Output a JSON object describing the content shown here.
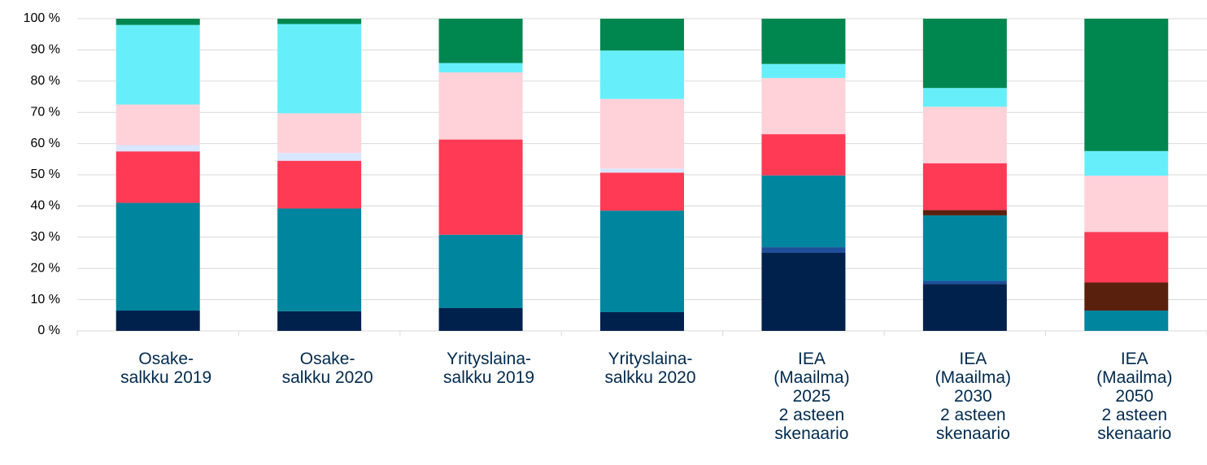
{
  "chart_data": {
    "type": "stacked_bar",
    "categories": [
      "Osake-\nsalkku 2019",
      "Osake-\nsalkku 2020",
      "Yrityslaina-\nsalkku 2019",
      "Yrityslaina-\nsalkku 2020",
      "IEA\n(Maailma)\n2025\n2 asteen\nskenaario",
      "IEA\n(Maailma)\n2030\n2 asteen\nskenaario",
      "IEA\n(Maailma)\n2050\n2 asteen\nskenaario"
    ],
    "series": [
      {
        "color": "#00214c",
        "values": [
          6.5,
          6.3,
          7.3,
          6,
          25,
          15,
          0
        ]
      },
      {
        "color": "#1d4f9a",
        "values": [
          0,
          0,
          0,
          0,
          1.8,
          1,
          0
        ]
      },
      {
        "color": "#00859e",
        "values": [
          34.5,
          32.9,
          23.5,
          32.5,
          23,
          21,
          6.5
        ]
      },
      {
        "color": "#5a200e",
        "values": [
          0,
          0,
          0,
          0,
          0,
          1.7,
          9
        ]
      },
      {
        "color": "#ff3a55",
        "values": [
          16.5,
          15.3,
          30.5,
          12.2,
          13.2,
          15,
          16.2
        ]
      },
      {
        "color": "#d9e6ff",
        "values": [
          2,
          2.5,
          0,
          1.3,
          0,
          0,
          0
        ]
      },
      {
        "color": "#ffd1d9",
        "values": [
          13,
          12.7,
          21.5,
          22.3,
          18,
          18.1,
          18
        ]
      },
      {
        "color": "#66effb",
        "values": [
          25.5,
          28.6,
          3,
          15.5,
          4.5,
          6,
          7.9
        ]
      },
      {
        "color": "#00874f",
        "values": [
          2,
          1.7,
          14.2,
          10.2,
          14.5,
          22.2,
          42.4
        ]
      }
    ],
    "ylim": [
      0,
      100
    ],
    "yticks": [
      {
        "value": 0,
        "label": "0 %"
      },
      {
        "value": 10,
        "label": "10 %"
      },
      {
        "value": 20,
        "label": "20 %"
      },
      {
        "value": 30,
        "label": "30 %"
      },
      {
        "value": 40,
        "label": "40 %"
      },
      {
        "value": 50,
        "label": "50 %"
      },
      {
        "value": 60,
        "label": "60 %"
      },
      {
        "value": 70,
        "label": "70 %"
      },
      {
        "value": 80,
        "label": "80 %"
      },
      {
        "value": 90,
        "label": "90 %"
      },
      {
        "value": 100,
        "label": "100 %"
      }
    ],
    "grid": true
  }
}
